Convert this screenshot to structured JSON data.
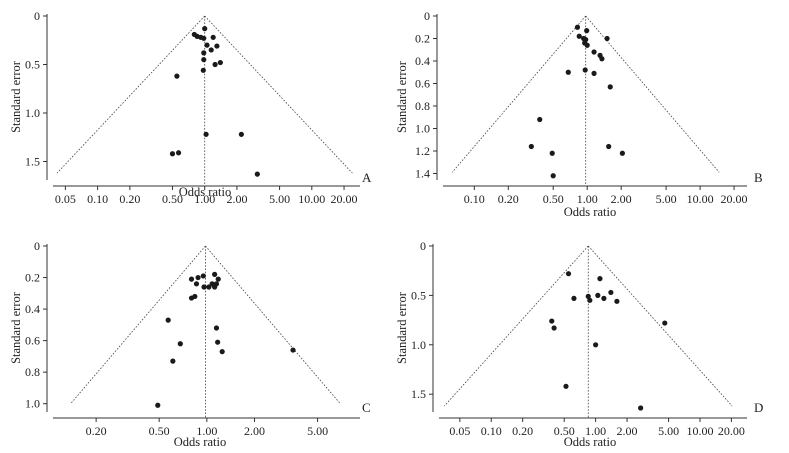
{
  "chart_data": [
    {
      "type": "scatter",
      "panel_label": "A",
      "xlabel": "Odds ratio",
      "ylabel": "Standard error",
      "x_scale": "log",
      "xlim": [
        0.04,
        27
      ],
      "ylim": [
        0,
        1.67
      ],
      "y_inverted": true,
      "xticks": [
        0.05,
        0.1,
        0.2,
        0.5,
        1.0,
        2.0,
        5.0,
        10.0,
        20.0
      ],
      "xtick_labels": [
        "0.05",
        "0.10",
        "0.20",
        "0.50",
        "1.00",
        "2.00",
        "5.00",
        "10.00",
        "20.00"
      ],
      "yticks": [
        0,
        0.5,
        1.0,
        1.5
      ],
      "ytick_labels": [
        "0",
        "0.5",
        "1.0",
        "1.5"
      ],
      "pooled_or": 1.0,
      "funnel_apex_se": 0,
      "funnel_base_se": 1.62,
      "points": [
        {
          "or": 1.0,
          "se": 0.13
        },
        {
          "or": 0.8,
          "se": 0.19
        },
        {
          "or": 0.85,
          "se": 0.21
        },
        {
          "or": 0.92,
          "se": 0.22
        },
        {
          "or": 0.98,
          "se": 0.23
        },
        {
          "or": 1.2,
          "se": 0.22
        },
        {
          "or": 1.05,
          "se": 0.3
        },
        {
          "or": 1.3,
          "se": 0.31
        },
        {
          "or": 1.15,
          "se": 0.35
        },
        {
          "or": 0.98,
          "se": 0.38
        },
        {
          "or": 0.98,
          "se": 0.45
        },
        {
          "or": 1.25,
          "se": 0.5
        },
        {
          "or": 1.4,
          "se": 0.48
        },
        {
          "or": 0.97,
          "se": 0.56
        },
        {
          "or": 0.55,
          "se": 0.62
        },
        {
          "or": 1.03,
          "se": 1.22
        },
        {
          "or": 2.2,
          "se": 1.22
        },
        {
          "or": 0.5,
          "se": 1.42
        },
        {
          "or": 0.57,
          "se": 1.41
        },
        {
          "or": 3.1,
          "se": 1.63
        }
      ]
    },
    {
      "type": "scatter",
      "panel_label": "B",
      "xlabel": "Odds ratio",
      "ylabel": "Standard error",
      "x_scale": "log",
      "xlim": [
        0.055,
        25
      ],
      "ylim": [
        0,
        1.44
      ],
      "y_inverted": true,
      "xticks": [
        0.1,
        0.2,
        0.5,
        1.0,
        2.0,
        5.0,
        10.0,
        20.0
      ],
      "xtick_labels": [
        "0.10",
        "0.20",
        "0.50",
        "1.00",
        "2.00",
        "5.00",
        "10.00",
        "20.00"
      ],
      "yticks": [
        0,
        0.2,
        0.4,
        0.6,
        0.8,
        1.0,
        1.2,
        1.4
      ],
      "ytick_labels": [
        "0",
        "0.2",
        "0.4",
        "0.6",
        "0.8",
        "1.0",
        "1.2",
        "1.4"
      ],
      "pooled_or": 0.97,
      "funnel_apex_se": 0,
      "funnel_base_se": 1.39,
      "points": [
        {
          "or": 0.82,
          "se": 0.1
        },
        {
          "or": 0.99,
          "se": 0.13
        },
        {
          "or": 0.85,
          "se": 0.18
        },
        {
          "or": 0.93,
          "se": 0.2
        },
        {
          "or": 0.97,
          "se": 0.21
        },
        {
          "or": 1.5,
          "se": 0.2
        },
        {
          "or": 0.95,
          "se": 0.24
        },
        {
          "or": 1.0,
          "se": 0.26
        },
        {
          "or": 1.15,
          "se": 0.32
        },
        {
          "or": 1.3,
          "se": 0.35
        },
        {
          "or": 1.35,
          "se": 0.38
        },
        {
          "or": 0.68,
          "se": 0.5
        },
        {
          "or": 0.96,
          "se": 0.48
        },
        {
          "or": 1.15,
          "se": 0.51
        },
        {
          "or": 1.6,
          "se": 0.63
        },
        {
          "or": 0.38,
          "se": 0.92
        },
        {
          "or": 0.32,
          "se": 1.16
        },
        {
          "or": 0.49,
          "se": 1.22
        },
        {
          "or": 1.55,
          "se": 1.16
        },
        {
          "or": 2.05,
          "se": 1.22
        },
        {
          "or": 0.5,
          "se": 1.42
        }
      ]
    },
    {
      "type": "scatter",
      "panel_label": "C",
      "xlabel": "Odds ratio",
      "ylabel": "Standard error",
      "x_scale": "log",
      "xlim": [
        0.11,
        9.0
      ],
      "ylim": [
        0,
        1.04
      ],
      "y_inverted": true,
      "xticks": [
        0.2,
        0.5,
        1.0,
        2.0,
        5.0
      ],
      "xtick_labels": [
        "0.20",
        "0.50",
        "1.00",
        "2.00",
        "5.00"
      ],
      "yticks": [
        0,
        0.2,
        0.4,
        0.6,
        0.8,
        1.0
      ],
      "ytick_labels": [
        "0",
        "0.2",
        "0.4",
        "0.6",
        "0.8",
        "1.0"
      ],
      "pooled_or": 0.98,
      "funnel_apex_se": 0,
      "funnel_base_se": 1.0,
      "points": [
        {
          "or": 0.95,
          "se": 0.19
        },
        {
          "or": 0.88,
          "se": 0.2
        },
        {
          "or": 1.12,
          "se": 0.18
        },
        {
          "or": 0.8,
          "se": 0.21
        },
        {
          "or": 1.18,
          "se": 0.21
        },
        {
          "or": 0.86,
          "se": 0.24
        },
        {
          "or": 1.08,
          "se": 0.24
        },
        {
          "or": 1.15,
          "se": 0.24
        },
        {
          "or": 0.96,
          "se": 0.26
        },
        {
          "or": 1.03,
          "se": 0.26
        },
        {
          "or": 1.12,
          "se": 0.26
        },
        {
          "or": 0.84,
          "se": 0.32
        },
        {
          "or": 0.8,
          "se": 0.33
        },
        {
          "or": 0.57,
          "se": 0.47
        },
        {
          "or": 1.15,
          "se": 0.52
        },
        {
          "or": 0.68,
          "se": 0.62
        },
        {
          "or": 1.17,
          "se": 0.61
        },
        {
          "or": 1.25,
          "se": 0.67
        },
        {
          "or": 3.5,
          "se": 0.66
        },
        {
          "or": 0.61,
          "se": 0.73
        },
        {
          "or": 0.49,
          "se": 1.01
        }
      ]
    },
    {
      "type": "scatter",
      "panel_label": "D",
      "xlabel": "Odds ratio",
      "ylabel": "Standard error",
      "x_scale": "log",
      "xlim": [
        0.033,
        27
      ],
      "ylim": [
        0,
        1.66
      ],
      "y_inverted": true,
      "xticks": [
        0.05,
        0.1,
        0.2,
        0.5,
        1.0,
        2.0,
        5.0,
        10.0,
        20.0
      ],
      "xtick_labels": [
        "0.05",
        "0.10",
        "0.20",
        "0.50",
        "1.00",
        "2.00",
        "5.00",
        "10.00",
        "20.00"
      ],
      "yticks": [
        0,
        0.5,
        1.0,
        1.5
      ],
      "ytick_labels": [
        "0",
        "0.5",
        "1.0",
        "1.5"
      ],
      "pooled_or": 0.85,
      "funnel_apex_se": 0,
      "funnel_base_se": 1.62,
      "points": [
        {
          "or": 0.55,
          "se": 0.28
        },
        {
          "or": 1.1,
          "se": 0.33
        },
        {
          "or": 1.4,
          "se": 0.47
        },
        {
          "or": 1.05,
          "se": 0.5
        },
        {
          "or": 0.85,
          "se": 0.51
        },
        {
          "or": 0.62,
          "se": 0.53
        },
        {
          "or": 1.2,
          "se": 0.53
        },
        {
          "or": 0.88,
          "se": 0.55
        },
        {
          "or": 1.6,
          "se": 0.56
        },
        {
          "or": 0.38,
          "se": 0.76
        },
        {
          "or": 0.4,
          "se": 0.83
        },
        {
          "or": 4.6,
          "se": 0.78
        },
        {
          "or": 1.0,
          "se": 1.0
        },
        {
          "or": 0.52,
          "se": 1.42
        },
        {
          "or": 2.7,
          "se": 1.64
        }
      ]
    }
  ]
}
